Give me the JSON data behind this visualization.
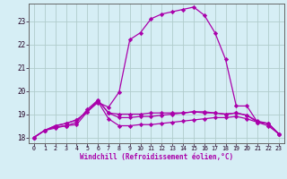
{
  "bg_color": "#d6eef5",
  "grid_color": "#b0cccc",
  "line_color": "#aa00aa",
  "marker": "D",
  "markersize": 2.2,
  "linewidth": 0.9,
  "xlabel": "Windchill (Refroidissement éolien,°C)",
  "xlim": [
    -0.5,
    23.5
  ],
  "ylim": [
    17.75,
    23.75
  ],
  "yticks": [
    18,
    19,
    20,
    21,
    22,
    23
  ],
  "xticks": [
    0,
    1,
    2,
    3,
    4,
    5,
    6,
    7,
    8,
    9,
    10,
    11,
    12,
    13,
    14,
    15,
    16,
    17,
    18,
    19,
    20,
    21,
    22,
    23
  ],
  "series": [
    [
      18.0,
      18.3,
      18.4,
      18.5,
      18.55,
      19.1,
      19.55,
      18.8,
      18.5,
      18.5,
      18.55,
      18.55,
      18.6,
      18.65,
      18.7,
      18.75,
      18.8,
      18.85,
      18.85,
      18.9,
      18.8,
      18.65,
      18.5,
      18.15
    ],
    [
      18.0,
      18.3,
      18.45,
      18.5,
      18.65,
      19.2,
      19.6,
      19.05,
      18.85,
      18.85,
      18.9,
      18.9,
      18.95,
      19.0,
      19.05,
      19.1,
      19.05,
      19.05,
      19.0,
      19.05,
      18.95,
      18.7,
      18.6,
      18.15
    ],
    [
      18.0,
      18.3,
      18.5,
      18.6,
      18.75,
      19.1,
      19.6,
      19.05,
      19.0,
      19.0,
      19.0,
      19.05,
      19.05,
      19.05,
      19.05,
      19.1,
      19.1,
      19.05,
      19.0,
      19.05,
      18.95,
      18.65,
      18.6,
      18.15
    ],
    [
      18.0,
      18.3,
      18.5,
      18.6,
      18.75,
      19.1,
      19.5,
      19.3,
      19.95,
      22.2,
      22.5,
      23.1,
      23.3,
      23.4,
      23.5,
      23.6,
      23.25,
      22.5,
      21.35,
      19.35,
      19.35,
      18.65,
      18.6,
      18.15
    ]
  ]
}
